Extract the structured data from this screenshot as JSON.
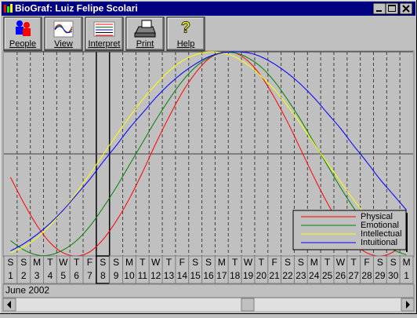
{
  "window": {
    "title": "BioGraf: Luiz Felipe Scolari"
  },
  "toolbar": [
    "People",
    "View",
    "Interpret",
    "Print",
    "Help"
  ],
  "chart_data": {
    "type": "line",
    "period": "June 2002",
    "categories": [
      "1",
      "2",
      "3",
      "4",
      "5",
      "6",
      "7",
      "8",
      "9",
      "10",
      "11",
      "12",
      "13",
      "14",
      "15",
      "16",
      "17",
      "18",
      "19",
      "20",
      "21",
      "22",
      "23",
      "24",
      "25",
      "26",
      "27",
      "28",
      "29",
      "30",
      "1"
    ],
    "weekdays": [
      "S",
      "S",
      "M",
      "T",
      "W",
      "T",
      "F",
      "S",
      "S",
      "M",
      "T",
      "W",
      "T",
      "F",
      "S",
      "S",
      "M",
      "T",
      "W",
      "T",
      "F",
      "S",
      "S",
      "M",
      "T",
      "W",
      "T",
      "F",
      "S",
      "S",
      "M"
    ],
    "ylim": [
      -100,
      100
    ],
    "legend": "bottom-right",
    "series": [
      {
        "name": "Physical",
        "color": "#ff0000",
        "values": [
          -23,
          -48,
          -70,
          -87,
          -97,
          -100,
          -96,
          -84,
          -66,
          -44,
          -18,
          10,
          36,
          60,
          79,
          93,
          99,
          99,
          91,
          76,
          55,
          31,
          4,
          -23,
          -48,
          -70,
          -87,
          -97,
          -100,
          -96,
          -84
        ]
      },
      {
        "name": "Emotional",
        "color": "#008000",
        "values": [
          -85,
          -94,
          -99,
          -99,
          -94,
          -85,
          -71,
          -53,
          -33,
          -11,
          11,
          33,
          53,
          71,
          85,
          94,
          99,
          99,
          94,
          85,
          71,
          53,
          33,
          11,
          -11,
          -33,
          -53,
          -71,
          -85,
          -94,
          -99
        ]
      },
      {
        "name": "Intellectual",
        "color": "#ffff00",
        "values": [
          -97,
          -91,
          -82,
          -70,
          -55,
          -38,
          -20,
          -1,
          18,
          36,
          53,
          68,
          81,
          91,
          97,
          100,
          99,
          95,
          87,
          76,
          63,
          47,
          29,
          10,
          -9,
          -27,
          -45,
          -61,
          -75,
          -86,
          -94
        ]
      },
      {
        "name": "Intuitional",
        "color": "#0000ff",
        "values": [
          -95,
          -88,
          -79,
          -68,
          -55,
          -40,
          -25,
          -8,
          8,
          25,
          40,
          55,
          68,
          79,
          88,
          95,
          99,
          100,
          99,
          95,
          88,
          79,
          68,
          55,
          40,
          25,
          8,
          -8,
          -25,
          -40,
          -55
        ]
      }
    ]
  }
}
